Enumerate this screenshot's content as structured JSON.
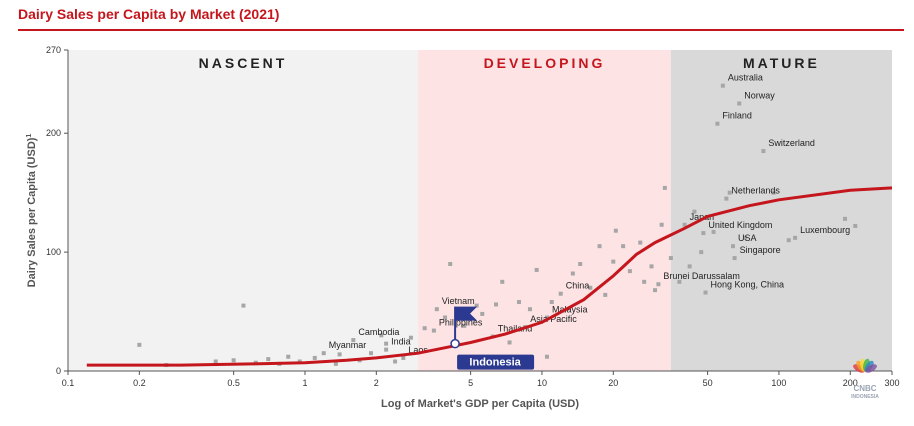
{
  "header": {
    "title": "Dairy Sales per Capita by Market (2021)"
  },
  "watermark": {
    "name": "cnbc-peacock-icon",
    "text": "CNBC INDONESIA"
  },
  "colors": {
    "accent": "#c4161c",
    "nascent_bg": "#f2f2f2",
    "developing_bg": "#fde3e4",
    "mature_bg": "#d9d9d9",
    "dot": "#a6a6a6",
    "flag": "#2b3990"
  },
  "chart_data": {
    "type": "scatter",
    "title": "Dairy Sales per Capita by Market (2021)",
    "xlabel": "Log of Market's GDP per Capita (USD)",
    "ylabel": "Dairy Sales per Capita (USD)",
    "ylabel_superscript": "1",
    "x_scale": "log",
    "xlim": [
      0.1,
      300
    ],
    "ylim": [
      0,
      270
    ],
    "x_ticks": [
      {
        "v": 0.1,
        "label": "0.1"
      },
      {
        "v": 0.2,
        "label": "0.2"
      },
      {
        "v": 0.5,
        "label": "0.5"
      },
      {
        "v": 1,
        "label": "1"
      },
      {
        "v": 2,
        "label": "2"
      },
      {
        "v": 5,
        "label": "5"
      },
      {
        "v": 10,
        "label": "10"
      },
      {
        "v": 20,
        "label": "20"
      },
      {
        "v": 50,
        "label": "50"
      },
      {
        "v": 100,
        "label": "100"
      },
      {
        "v": 200,
        "label": "200"
      },
      {
        "v": 300,
        "label": "300"
      }
    ],
    "y_ticks": [
      {
        "v": 0,
        "label": "0"
      },
      {
        "v": 100,
        "label": "100"
      },
      {
        "v": 200,
        "label": "200"
      },
      {
        "v": 270,
        "label": "270"
      }
    ],
    "zones": [
      {
        "name": "NASCENT",
        "from": 0.1,
        "to": 3
      },
      {
        "name": "DEVELOPING",
        "from": 3,
        "to": 35
      },
      {
        "name": "MATURE",
        "from": 35,
        "to": 300
      }
    ],
    "trend_curve": [
      {
        "x": 0.12,
        "y": 5
      },
      {
        "x": 0.3,
        "y": 5
      },
      {
        "x": 0.6,
        "y": 6
      },
      {
        "x": 1,
        "y": 7
      },
      {
        "x": 1.5,
        "y": 9
      },
      {
        "x": 2,
        "y": 11
      },
      {
        "x": 3,
        "y": 15
      },
      {
        "x": 4,
        "y": 20
      },
      {
        "x": 5,
        "y": 24
      },
      {
        "x": 7,
        "y": 31
      },
      {
        "x": 10,
        "y": 41
      },
      {
        "x": 15,
        "y": 60
      },
      {
        "x": 20,
        "y": 80
      },
      {
        "x": 25,
        "y": 98
      },
      {
        "x": 30,
        "y": 108
      },
      {
        "x": 40,
        "y": 120
      },
      {
        "x": 50,
        "y": 130
      },
      {
        "x": 75,
        "y": 139
      },
      {
        "x": 100,
        "y": 144
      },
      {
        "x": 200,
        "y": 152
      },
      {
        "x": 300,
        "y": 154
      }
    ],
    "labeled_points": [
      {
        "name": "Australia",
        "x": 58,
        "y": 240
      },
      {
        "name": "Norway",
        "x": 68,
        "y": 225
      },
      {
        "name": "Finland",
        "x": 55,
        "y": 208
      },
      {
        "name": "Switzerland",
        "x": 86,
        "y": 185
      },
      {
        "name": "Netherlands",
        "x": 60,
        "y": 145
      },
      {
        "name": "Japan",
        "x": 40,
        "y": 123
      },
      {
        "name": "United Kingdom",
        "x": 48,
        "y": 116
      },
      {
        "name": "USA",
        "x": 64,
        "y": 105
      },
      {
        "name": "Singapore",
        "x": 65,
        "y": 95
      },
      {
        "name": "Luxembourg",
        "x": 117,
        "y": 112
      },
      {
        "name": "Brunei Darussalam",
        "x": 31,
        "y": 73
      },
      {
        "name": "Hong Kong, China",
        "x": 49,
        "y": 66
      },
      {
        "name": "China",
        "x": 12,
        "y": 65
      },
      {
        "name": "Malaysia",
        "x": 10.5,
        "y": 45
      },
      {
        "name": "Asia Pacific",
        "x": 8.5,
        "y": 37
      },
      {
        "name": "Thailand",
        "x": 6.2,
        "y": 29
      },
      {
        "name": "Vietnam",
        "x": 3.6,
        "y": 52
      },
      {
        "name": "Philippines",
        "x": 3.5,
        "y": 34
      },
      {
        "name": "Cambodia",
        "x": 1.6,
        "y": 26
      },
      {
        "name": "India",
        "x": 2.2,
        "y": 18
      },
      {
        "name": "Myanmar",
        "x": 1.2,
        "y": 15
      },
      {
        "name": "Laos",
        "x": 2.6,
        "y": 11
      }
    ],
    "highlight": {
      "name": "Indonesia",
      "x": 4.3,
      "y": 23
    },
    "background_points": [
      {
        "x": 0.2,
        "y": 22
      },
      {
        "x": 0.26,
        "y": 5
      },
      {
        "x": 0.42,
        "y": 8
      },
      {
        "x": 0.5,
        "y": 9
      },
      {
        "x": 0.55,
        "y": 55
      },
      {
        "x": 0.62,
        "y": 7
      },
      {
        "x": 0.7,
        "y": 10
      },
      {
        "x": 0.78,
        "y": 6
      },
      {
        "x": 0.85,
        "y": 12
      },
      {
        "x": 0.95,
        "y": 8
      },
      {
        "x": 1.1,
        "y": 11
      },
      {
        "x": 1.35,
        "y": 6
      },
      {
        "x": 1.4,
        "y": 14
      },
      {
        "x": 1.7,
        "y": 9
      },
      {
        "x": 1.9,
        "y": 15
      },
      {
        "x": 2.1,
        "y": 30
      },
      {
        "x": 2.2,
        "y": 23
      },
      {
        "x": 2.4,
        "y": 8
      },
      {
        "x": 2.8,
        "y": 28
      },
      {
        "x": 3.2,
        "y": 36
      },
      {
        "x": 3.9,
        "y": 45
      },
      {
        "x": 4.1,
        "y": 90
      },
      {
        "x": 4.7,
        "y": 38
      },
      {
        "x": 5.3,
        "y": 55
      },
      {
        "x": 5.6,
        "y": 48
      },
      {
        "x": 6.4,
        "y": 56
      },
      {
        "x": 6.8,
        "y": 75
      },
      {
        "x": 7.3,
        "y": 24
      },
      {
        "x": 8,
        "y": 58
      },
      {
        "x": 8.9,
        "y": 52
      },
      {
        "x": 9.5,
        "y": 85
      },
      {
        "x": 10.5,
        "y": 12
      },
      {
        "x": 11,
        "y": 58
      },
      {
        "x": 13.5,
        "y": 82
      },
      {
        "x": 14.5,
        "y": 90
      },
      {
        "x": 16,
        "y": 70
      },
      {
        "x": 17.5,
        "y": 105
      },
      {
        "x": 18.5,
        "y": 64
      },
      {
        "x": 20,
        "y": 92
      },
      {
        "x": 20.5,
        "y": 118
      },
      {
        "x": 22,
        "y": 105
      },
      {
        "x": 23.5,
        "y": 84
      },
      {
        "x": 26,
        "y": 108
      },
      {
        "x": 27,
        "y": 75
      },
      {
        "x": 29,
        "y": 88
      },
      {
        "x": 30,
        "y": 68
      },
      {
        "x": 32,
        "y": 123
      },
      {
        "x": 33,
        "y": 154
      },
      {
        "x": 35,
        "y": 95
      },
      {
        "x": 38,
        "y": 75
      },
      {
        "x": 42,
        "y": 88
      },
      {
        "x": 44,
        "y": 134
      },
      {
        "x": 47,
        "y": 100
      },
      {
        "x": 53,
        "y": 117
      },
      {
        "x": 62,
        "y": 150
      },
      {
        "x": 72,
        "y": 112
      },
      {
        "x": 95,
        "y": 150
      },
      {
        "x": 110,
        "y": 110
      },
      {
        "x": 190,
        "y": 128
      },
      {
        "x": 210,
        "y": 122
      }
    ]
  }
}
